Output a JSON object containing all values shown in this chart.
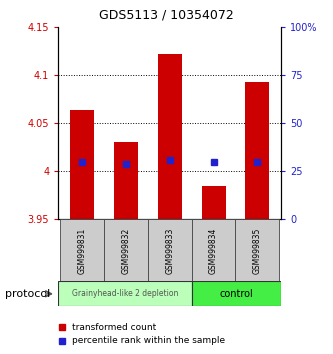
{
  "title": "GDS5113 / 10354072",
  "samples": [
    "GSM999831",
    "GSM999832",
    "GSM999833",
    "GSM999834",
    "GSM999835"
  ],
  "bar_bottoms": [
    3.951,
    3.951,
    3.951,
    3.951,
    3.951
  ],
  "bar_tops": [
    4.063,
    4.03,
    4.122,
    3.985,
    4.092
  ],
  "percentile_values": [
    4.01,
    4.008,
    4.012,
    4.01,
    4.01
  ],
  "ylim_left": [
    3.95,
    4.15
  ],
  "ylim_right": [
    0,
    100
  ],
  "yticks_left": [
    3.95,
    4.0,
    4.05,
    4.1,
    4.15
  ],
  "yticks_right": [
    0,
    25,
    50,
    75,
    100
  ],
  "ytick_labels_left": [
    "3.95",
    "4",
    "4.05",
    "4.1",
    "4.15"
  ],
  "ytick_labels_right": [
    "0",
    "25",
    "50",
    "75",
    "100%"
  ],
  "dotted_lines": [
    4.0,
    4.05,
    4.1
  ],
  "bar_color": "#cc0000",
  "percentile_color": "#2222cc",
  "group1_label": "Grainyhead-like 2 depletion",
  "group2_label": "control",
  "group1_color": "#bbffbb",
  "group2_color": "#44ee44",
  "protocol_label": "protocol",
  "legend_bar_label": "transformed count",
  "legend_pct_label": "percentile rank within the sample",
  "left_tick_color": "#cc0000",
  "right_tick_color": "#2222cc",
  "bar_width": 0.55,
  "sample_box_color": "#cccccc",
  "title_fontsize": 9,
  "tick_fontsize": 7,
  "sample_fontsize": 5.5,
  "legend_fontsize": 6.5,
  "protocol_fontsize": 8
}
